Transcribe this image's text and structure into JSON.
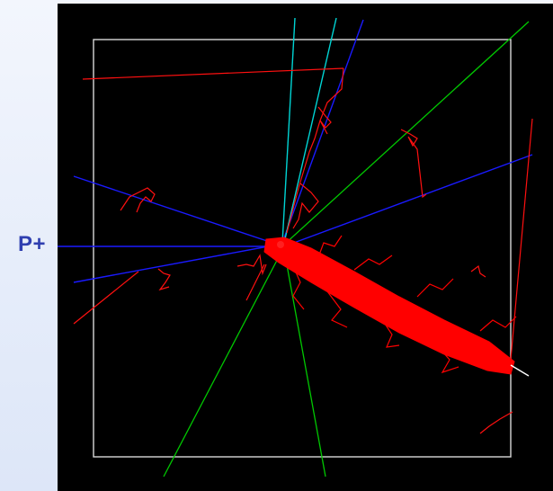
{
  "particle_label": "P+",
  "colors": {
    "background": "#000000",
    "detector_box": "#d8d8d8",
    "charged_negative_tracks": "#ff0000",
    "neutral_tracks": "#00cc00",
    "beam_tracks": "#0000ff",
    "cyan_tracks": "#00d0d0",
    "label": "#2f3fb0"
  }
}
